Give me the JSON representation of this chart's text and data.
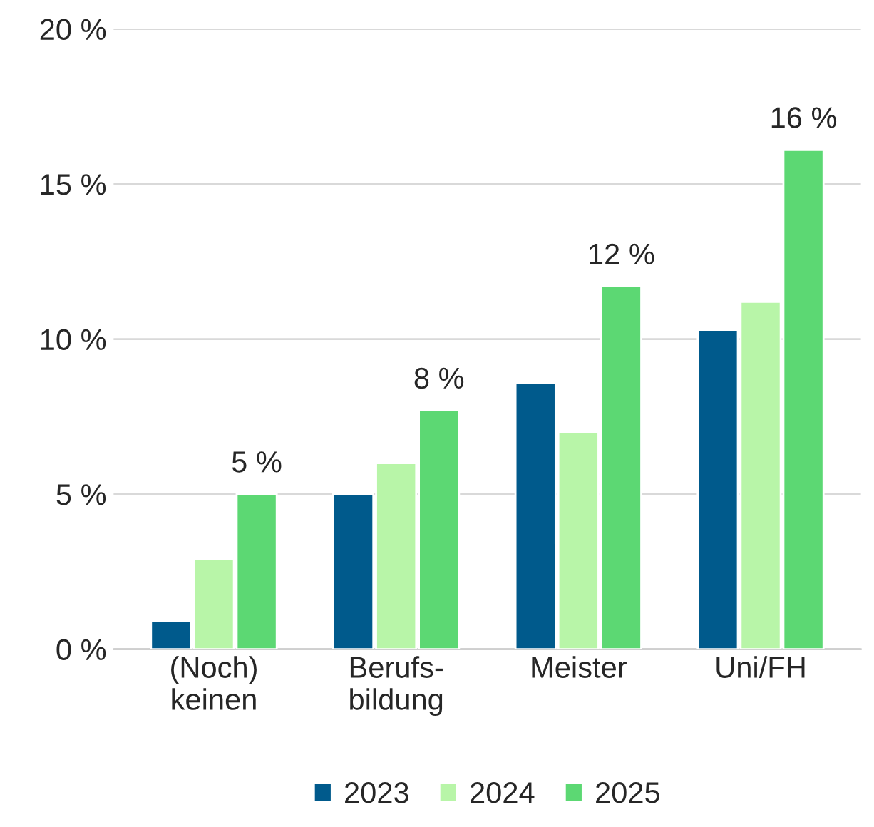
{
  "chart_data": {
    "type": "bar",
    "categories": [
      "(Noch)\nkeinen",
      "Berufs-\nbildung",
      "Meister",
      "Uni/FH"
    ],
    "series": [
      {
        "name": "2023",
        "color": "#005a8c",
        "values": [
          0.9,
          5.0,
          8.6,
          10.3
        ]
      },
      {
        "name": "2024",
        "color": "#b8f5a8",
        "values": [
          2.9,
          6.0,
          7.0,
          11.2
        ]
      },
      {
        "name": "2025",
        "color": "#5cd873",
        "values": [
          5.0,
          7.7,
          11.7,
          16.1
        ],
        "value_labels": [
          "5 %",
          "8 %",
          "12 %",
          "16 %"
        ]
      }
    ],
    "ylim": [
      0,
      20
    ],
    "yticks": [
      {
        "value": 0,
        "label": "0 %"
      },
      {
        "value": 5,
        "label": "5 %"
      },
      {
        "value": 10,
        "label": "10 %"
      },
      {
        "value": 15,
        "label": "15 %"
      },
      {
        "value": 20,
        "label": "20 %"
      }
    ],
    "grid": "y",
    "legend": "bottom"
  }
}
